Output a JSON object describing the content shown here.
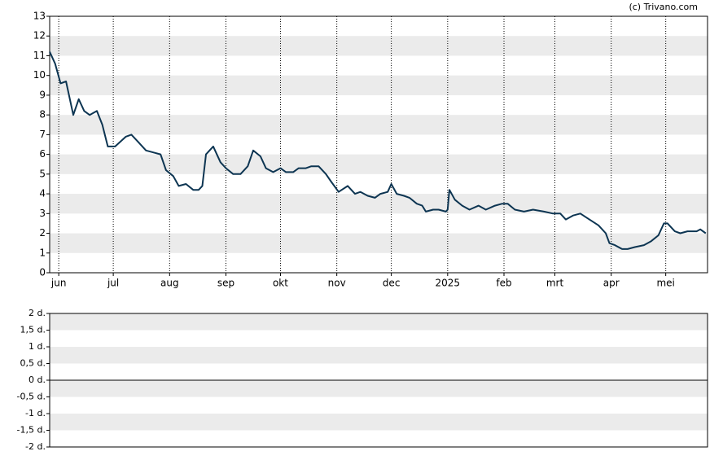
{
  "chart_data": [
    {
      "type": "line",
      "source": "(c) Trivano.com",
      "x": [
        -5,
        -2,
        1,
        4,
        8,
        11,
        14,
        17,
        21,
        24,
        27,
        31,
        37,
        40,
        44,
        48,
        52,
        56,
        59,
        63,
        66,
        70,
        74,
        77,
        79,
        81,
        84,
        85,
        89,
        92,
        96,
        100,
        104,
        107,
        111,
        114,
        118,
        122,
        125,
        129,
        132,
        136,
        139,
        143,
        147,
        150,
        154,
        159,
        163,
        166,
        170,
        174,
        177,
        181,
        183,
        186,
        190,
        193,
        197,
        200,
        202,
        206,
        209,
        213,
        214,
        215,
        218,
        222,
        226,
        231,
        235,
        240,
        244,
        247,
        251,
        256,
        261,
        267,
        272,
        276,
        279,
        283,
        287,
        292,
        297,
        301,
        303,
        306,
        310,
        313,
        317,
        322,
        326,
        330,
        333,
        335,
        339,
        342,
        346,
        351,
        353,
        356
      ],
      "series": [
        {
          "color": "#0d3552",
          "values": [
            11.2,
            10.6,
            9.6,
            9.7,
            8.0,
            8.8,
            8.2,
            8.0,
            8.2,
            7.5,
            6.4,
            6.4,
            6.9,
            7.0,
            6.6,
            6.2,
            6.1,
            6.0,
            5.2,
            4.9,
            4.4,
            4.5,
            4.2,
            4.2,
            4.4,
            6.0,
            6.3,
            6.4,
            5.6,
            5.3,
            5.0,
            5.0,
            5.4,
            6.2,
            5.9,
            5.3,
            5.1,
            5.3,
            5.1,
            5.1,
            5.3,
            5.3,
            5.4,
            5.4,
            5.0,
            4.6,
            4.1,
            4.4,
            4.0,
            4.1,
            3.9,
            3.8,
            4.0,
            4.1,
            4.5,
            4.0,
            3.9,
            3.8,
            3.5,
            3.4,
            3.1,
            3.2,
            3.2,
            3.1,
            3.2,
            4.2,
            3.7,
            3.4,
            3.2,
            3.4,
            3.2,
            3.4,
            3.5,
            3.5,
            3.2,
            3.1,
            3.2,
            3.1,
            3.0,
            3.0,
            2.7,
            2.9,
            3.0,
            2.7,
            2.4,
            2.0,
            1.5,
            1.4,
            1.2,
            1.2,
            1.3,
            1.4,
            1.6,
            1.9,
            2.5,
            2.5,
            2.1,
            2.0,
            2.1,
            2.1,
            2.2,
            2.0
          ]
        }
      ],
      "xlim": [
        -5,
        357
      ],
      "xticks": [
        {
          "value": 0,
          "label": "jun"
        },
        {
          "value": 30,
          "label": "jul"
        },
        {
          "value": 61,
          "label": "aug"
        },
        {
          "value": 92,
          "label": "sep"
        },
        {
          "value": 122,
          "label": "okt"
        },
        {
          "value": 153,
          "label": "nov"
        },
        {
          "value": 183,
          "label": "dec"
        },
        {
          "value": 214,
          "label": "2025"
        },
        {
          "value": 245,
          "label": "feb"
        },
        {
          "value": 273,
          "label": "mrt"
        },
        {
          "value": 304,
          "label": "apr"
        },
        {
          "value": 334,
          "label": "mei"
        }
      ],
      "ylim": [
        0,
        13
      ],
      "yticks": [
        0,
        1,
        2,
        3,
        4,
        5,
        6,
        7,
        8,
        9,
        10,
        11,
        12,
        13
      ],
      "grid": true
    },
    {
      "type": "line",
      "ylim": [
        -2,
        2
      ],
      "yticks": [
        {
          "value": 2,
          "label": "2 d."
        },
        {
          "value": 1.5,
          "label": "1,5 d."
        },
        {
          "value": 1,
          "label": "1 d."
        },
        {
          "value": 0.5,
          "label": "0,5 d."
        },
        {
          "value": 0,
          "label": "0 d."
        },
        {
          "value": -0.5,
          "label": "-0,5 d."
        },
        {
          "value": -1,
          "label": "-1 d."
        },
        {
          "value": -1.5,
          "label": "-1,5 d."
        },
        {
          "value": -2,
          "label": "-2 d."
        }
      ],
      "grid": false
    }
  ]
}
